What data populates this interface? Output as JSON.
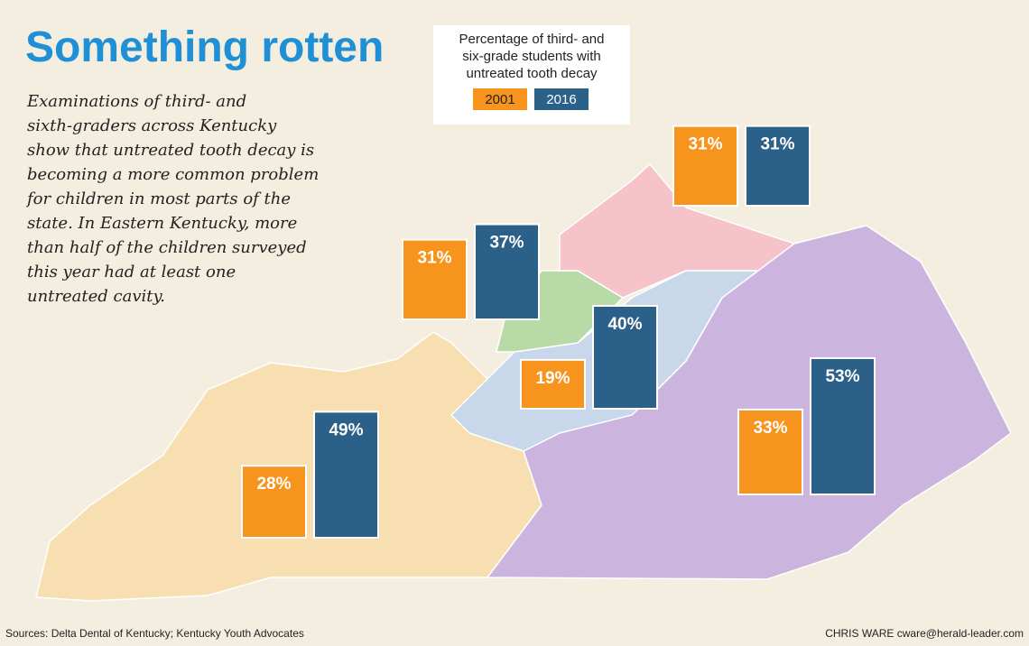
{
  "title": "Something rotten",
  "description": [
    "Examinations of third- and",
    "sixth-graders across Kentucky",
    "show that untreated tooth decay is",
    "becoming a more common problem",
    "for children in most parts of the",
    "state. In Eastern Kentucky, more",
    "than half of the children surveyed",
    "this year had at least one",
    "untreated cavity."
  ],
  "chart_data": {
    "type": "bar",
    "legend_title": [
      "Percentage of third- and",
      "six-grade students with",
      "untreated tooth decay"
    ],
    "categories": [
      null,
      null,
      null,
      null,
      null
    ],
    "series": [
      {
        "name": "2001",
        "color": "#f7941d",
        "values": [
          28,
          31,
          19,
          31,
          33
        ],
        "value_labels": [
          "28%",
          "31%",
          "19%",
          "31%",
          "33%"
        ]
      },
      {
        "name": "2016",
        "color": "#2b6189",
        "values": [
          49,
          37,
          40,
          31,
          53
        ],
        "value_labels": [
          "49%",
          "37%",
          "40%",
          "31%",
          "53%"
        ]
      }
    ]
  },
  "sources": "Sources: Delta Dental of Kentucky; Kentucky Youth Advocates",
  "credit": "CHRIS WARE cware@herald-leader.com"
}
